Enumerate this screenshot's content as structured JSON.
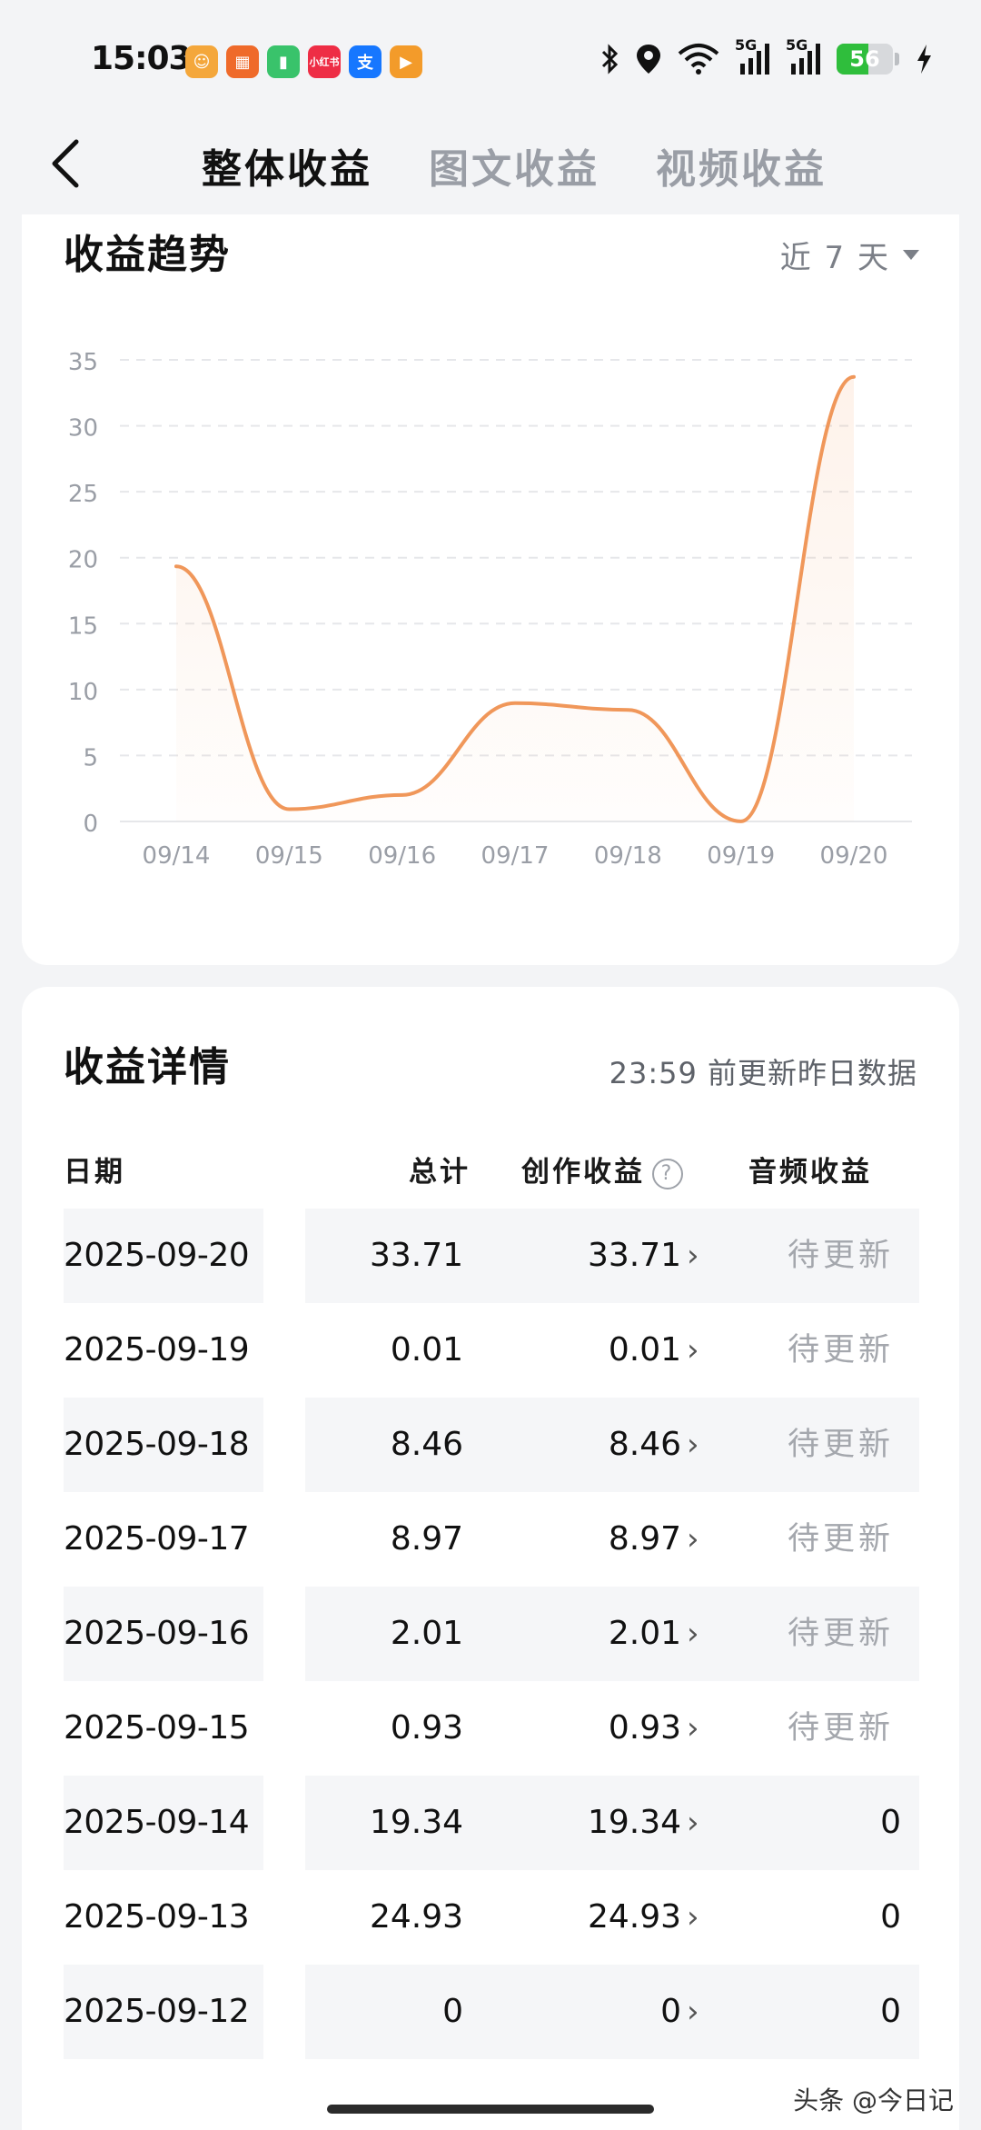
{
  "status_bar": {
    "time": "15:03",
    "apps": [
      {
        "icon": "app-cartoon-icon",
        "color": "#f4a73b",
        "glyph": "☺"
      },
      {
        "icon": "app-grid-icon",
        "color": "#ef6a2a",
        "glyph": "▦"
      },
      {
        "icon": "app-battery-app-icon",
        "color": "#39c36b",
        "glyph": "▮"
      },
      {
        "icon": "app-xiaohongshu-icon",
        "color": "#ee2d45",
        "glyph": "小红书"
      },
      {
        "icon": "app-alipay-icon",
        "color": "#1677ff",
        "glyph": "支"
      },
      {
        "icon": "app-video-icon",
        "color": "#f39b2a",
        "glyph": "▶"
      }
    ],
    "signal_label_1": "5G",
    "signal_label_2": "5G",
    "battery": "56",
    "battery_level": 0.56
  },
  "header": {
    "tabs": [
      {
        "label": "整体收益",
        "active": true
      },
      {
        "label": "图文收益",
        "active": false
      },
      {
        "label": "视频收益",
        "active": false
      }
    ]
  },
  "trend": {
    "title": "收益趋势",
    "period": "近 7 天"
  },
  "chart_data": {
    "type": "line",
    "title": "",
    "xlabel": "",
    "ylabel": "",
    "x": [
      "09/14",
      "09/15",
      "09/16",
      "09/17",
      "09/18",
      "09/19",
      "09/20"
    ],
    "series": [
      {
        "values": [
          19.34,
          0.93,
          2.01,
          8.97,
          8.46,
          0.01,
          33.71
        ],
        "color": "#f0975a"
      }
    ],
    "y_ticks": [
      "35",
      "30",
      "25",
      "20",
      "15",
      "10",
      "5",
      "0"
    ],
    "ylim": [
      0,
      35
    ],
    "grid": true,
    "legend": "none"
  },
  "details": {
    "title": "收益详情",
    "update_note": "23:59 前更新昨日数据",
    "columns": {
      "date": "日期",
      "total": "总计",
      "create": "创作收益",
      "audio": "音频收益"
    },
    "rows": [
      {
        "date": "2025-09-20",
        "total": "33.71",
        "create": "33.71",
        "audio": "待更新"
      },
      {
        "date": "2025-09-19",
        "total": "0.01",
        "create": "0.01",
        "audio": "待更新"
      },
      {
        "date": "2025-09-18",
        "total": "8.46",
        "create": "8.46",
        "audio": "待更新"
      },
      {
        "date": "2025-09-17",
        "total": "8.97",
        "create": "8.97",
        "audio": "待更新"
      },
      {
        "date": "2025-09-16",
        "total": "2.01",
        "create": "2.01",
        "audio": "待更新"
      },
      {
        "date": "2025-09-15",
        "total": "0.93",
        "create": "0.93",
        "audio": "待更新"
      },
      {
        "date": "2025-09-14",
        "total": "19.34",
        "create": "19.34",
        "audio": "0"
      },
      {
        "date": "2025-09-13",
        "total": "24.93",
        "create": "24.93",
        "audio": "0"
      },
      {
        "date": "2025-09-12",
        "total": "0",
        "create": "0",
        "audio": "0"
      }
    ]
  },
  "watermark": "头条 @今日记"
}
